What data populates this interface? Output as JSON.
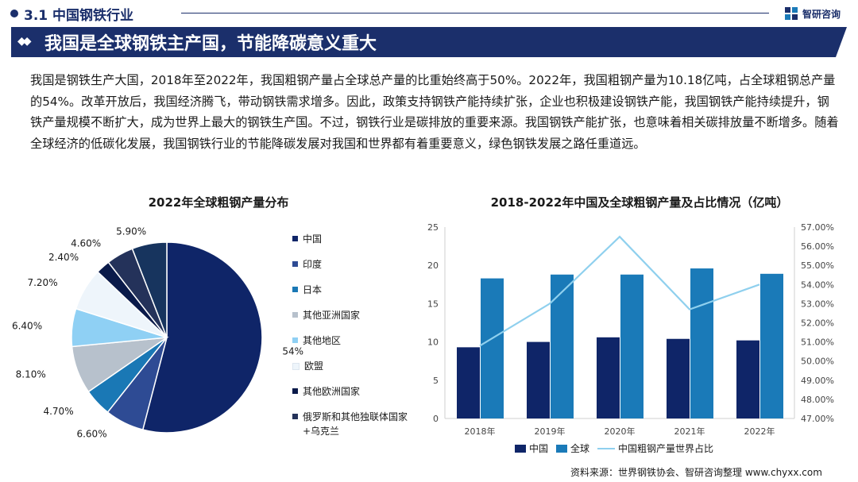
{
  "header": {
    "section": "3.1 中国钢铁行业",
    "logo_text": "智研咨询",
    "banner": "我国是全球钢铁主产国，节能降碳意义重大"
  },
  "paragraph": "我国是钢铁生产大国，2018年至2022年，我国粗钢产量占全球总产量的比重始终高于50%。2022年，我国粗钢产量为10.18亿吨，占全球粗钢总产量的54%。改革开放后，我国经济腾飞，带动钢铁需求增多。因此，政策支持钢铁产能持续扩张，企业也积极建设钢铁产能，我国钢铁产能持续提升，钢铁产量规模不断扩大，成为世界上最大的钢铁生产国。不过，钢铁行业是碳排放的重要来源。我国钢铁产能扩张，也意味着相关碳排放量不断增多。随着全球经济的低碳化发展，我国钢铁行业的节能降碳发展对我国和世界都有着重要意义，绿色钢铁发展之路任重道远。",
  "source": "资料来源：世界钢铁协会、智研咨询整理 www.chyxx.com",
  "colors": {
    "navy": "#1b2f6b",
    "china_bar": "#0f2568",
    "world_bar": "#1a7ab8",
    "share_line": "#8fd0ee"
  },
  "chart_data": [
    {
      "type": "pie",
      "title": "2022年全球粗钢产量分布",
      "slices": [
        {
          "name": "中国",
          "value": 54,
          "label": "54%",
          "color": "#0f2568"
        },
        {
          "name": "印度",
          "value": 6.6,
          "label": "6.60%",
          "color": "#2e4b94"
        },
        {
          "name": "日本",
          "value": 4.7,
          "label": "4.70%",
          "color": "#1a78b5"
        },
        {
          "name": "其他亚洲国家",
          "value": 8.1,
          "label": "8.10%",
          "color": "#b7c1cc"
        },
        {
          "name": "其他地区",
          "value": 6.4,
          "label": "6.40%",
          "color": "#8fd0f4"
        },
        {
          "name": "欧盟",
          "value": 7.2,
          "label": "7.20%",
          "color": "#eef5fb"
        },
        {
          "name": "其他欧洲国家",
          "value": 2.4,
          "label": "2.40%",
          "color": "#0a1a4a"
        },
        {
          "name": "俄罗斯和其他独联体国家+乌克兰",
          "value": 4.6,
          "label": "4.60%",
          "color": "#24325a"
        },
        {
          "name": "",
          "value": 5.9,
          "label": "5.90%",
          "color": "#17345e"
        }
      ],
      "legend": [
        "中国",
        "印度",
        "日本",
        "其他亚洲国家",
        "其他地区",
        "欧盟",
        "其他欧洲国家",
        "俄罗斯和其他独联体国家+乌克兰"
      ]
    },
    {
      "type": "bar",
      "title": "2018-2022年中国及全球粗钢产量及占比情况（亿吨）",
      "categories": [
        "2018年",
        "2019年",
        "2020年",
        "2021年",
        "2022年"
      ],
      "series": [
        {
          "name": "中国",
          "type": "bar",
          "axis": "left",
          "values": [
            9.3,
            10.0,
            10.6,
            10.4,
            10.2
          ]
        },
        {
          "name": "全球",
          "type": "bar",
          "axis": "left",
          "values": [
            18.3,
            18.8,
            18.8,
            19.6,
            18.9
          ]
        },
        {
          "name": "中国粗钢产量世界占比",
          "type": "line",
          "axis": "right",
          "values": [
            50.8,
            53.0,
            56.5,
            52.7,
            54.0
          ]
        }
      ],
      "left_axis": {
        "min": 0,
        "max": 25,
        "ticks": [
          0,
          5,
          10,
          15,
          20,
          25
        ]
      },
      "right_axis": {
        "min": 47,
        "max": 57,
        "ticks": [
          "47.00%",
          "48.00%",
          "49.00%",
          "50.00%",
          "51.00%",
          "52.00%",
          "53.00%",
          "54.00%",
          "55.00%",
          "56.00%",
          "57.00%"
        ]
      },
      "grid": false,
      "legend_position": "bottom"
    }
  ]
}
